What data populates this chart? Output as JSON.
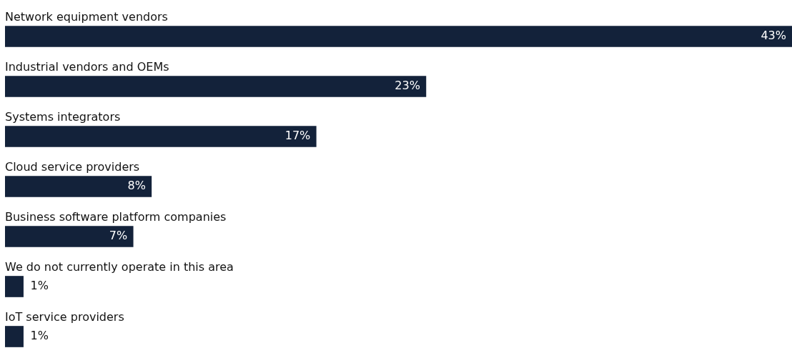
{
  "chart_data": {
    "type": "bar",
    "orientation": "horizontal",
    "categories": [
      "Network equipment vendors",
      "Industrial vendors and OEMs",
      "Systems integrators",
      "Cloud service providers",
      "Business software platform companies",
      "We do not currently operate in this area",
      "IoT service providers"
    ],
    "values": [
      43,
      23,
      17,
      8,
      7,
      1,
      1
    ],
    "value_labels": [
      "43%",
      "23%",
      "17%",
      "8%",
      "7%",
      "1%",
      "1%"
    ],
    "color": "#13223a",
    "xlim": [
      0,
      43
    ],
    "tick_labels": "y"
  }
}
